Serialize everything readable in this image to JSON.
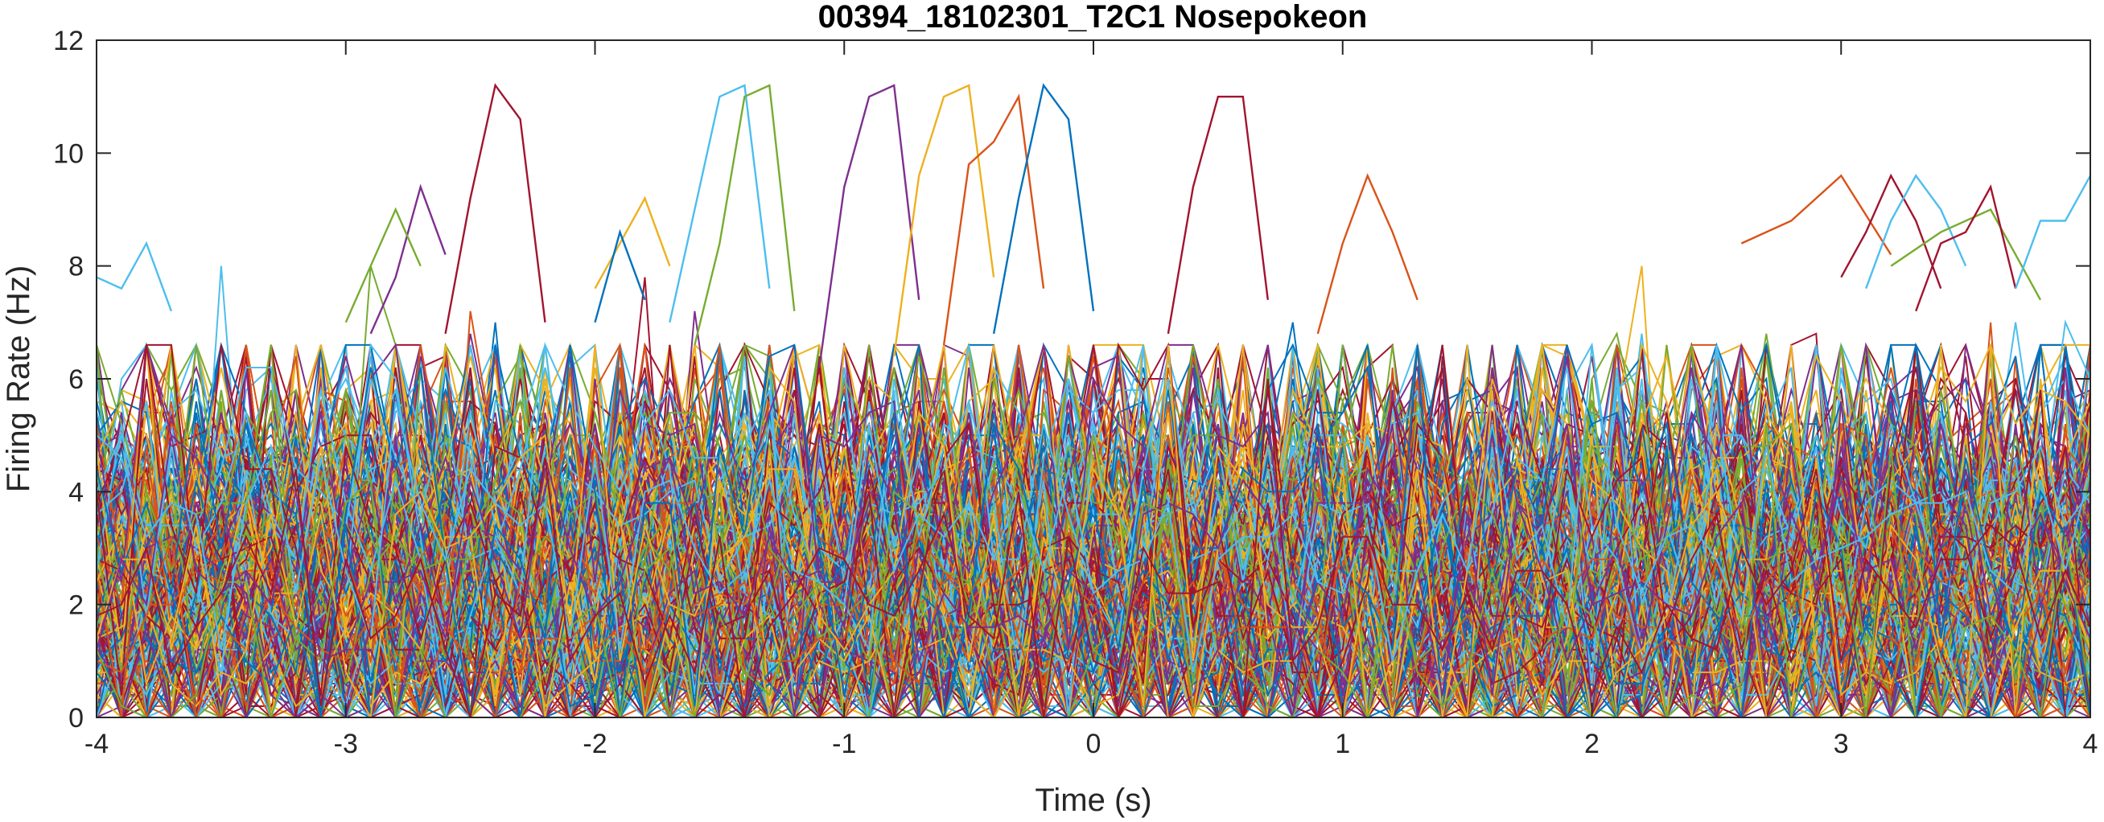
{
  "chart_data": {
    "type": "line",
    "title": "00394_18102301_T2C1 Nosepokeon",
    "xlabel": "Time (s)",
    "ylabel": "Firing Rate (Hz)",
    "xlim": [
      -4,
      4
    ],
    "ylim": [
      0,
      12
    ],
    "xticks": [
      -4,
      -3,
      -2,
      -1,
      0,
      1,
      2,
      3,
      4
    ],
    "yticks": [
      0,
      2,
      4,
      6,
      8,
      10,
      12
    ],
    "x_step": 0.1,
    "grid": false,
    "legend": "none",
    "series_colors": [
      "#0072BD",
      "#D95319",
      "#EDB120",
      "#7E2F8E",
      "#77AC30",
      "#4DBEEE",
      "#A2142F"
    ],
    "series_note_count": 280,
    "background_rate_hz": {
      "typical_min": 0,
      "typical_max": 6.5
    },
    "peaks": [
      {
        "color": "#A2142F",
        "x": [
          -2.6,
          -2.5,
          -2.4,
          -2.3,
          -2.2
        ],
        "y": [
          6.8,
          9.2,
          11.2,
          10.6,
          7.0
        ]
      },
      {
        "color": "#4DBEEE",
        "x": [
          -1.7,
          -1.6,
          -1.5,
          -1.4,
          -1.3
        ],
        "y": [
          7.0,
          9.0,
          11.0,
          11.2,
          7.6
        ]
      },
      {
        "color": "#77AC30",
        "x": [
          -1.6,
          -1.5,
          -1.4,
          -1.3,
          -1.2
        ],
        "y": [
          6.6,
          8.4,
          11.0,
          11.2,
          7.2
        ]
      },
      {
        "color": "#7E2F8E",
        "x": [
          -1.1,
          -1.0,
          -0.9,
          -0.8,
          -0.7
        ],
        "y": [
          6.2,
          9.4,
          11.0,
          11.2,
          7.4
        ]
      },
      {
        "color": "#EDB120",
        "x": [
          -0.8,
          -0.7,
          -0.6,
          -0.5,
          -0.4
        ],
        "y": [
          6.4,
          9.6,
          11.0,
          11.2,
          7.8
        ]
      },
      {
        "color": "#D95319",
        "x": [
          -0.6,
          -0.5,
          -0.4,
          -0.3,
          -0.2
        ],
        "y": [
          6.6,
          9.8,
          10.2,
          11.0,
          7.6
        ]
      },
      {
        "color": "#0072BD",
        "x": [
          -0.4,
          -0.3,
          -0.2,
          -0.1,
          0.0
        ],
        "y": [
          6.8,
          9.2,
          11.2,
          10.6,
          7.2
        ]
      },
      {
        "color": "#A2142F",
        "x": [
          0.3,
          0.4,
          0.5,
          0.6,
          0.7
        ],
        "y": [
          6.8,
          9.4,
          11.0,
          11.0,
          7.4
        ]
      },
      {
        "color": "#D95319",
        "x": [
          0.9,
          1.0,
          1.1,
          1.2,
          1.3
        ],
        "y": [
          6.8,
          8.4,
          9.6,
          8.6,
          7.4
        ]
      },
      {
        "color": "#D95319",
        "x": [
          2.6,
          2.8,
          3.0,
          3.2
        ],
        "y": [
          8.4,
          8.8,
          9.6,
          8.2
        ]
      },
      {
        "color": "#A2142F",
        "x": [
          3.0,
          3.1,
          3.2,
          3.3,
          3.4
        ],
        "y": [
          7.8,
          8.6,
          9.6,
          8.8,
          7.6
        ]
      },
      {
        "color": "#4DBEEE",
        "x": [
          3.1,
          3.2,
          3.3,
          3.4,
          3.5
        ],
        "y": [
          7.6,
          8.8,
          9.6,
          9.0,
          8.0
        ]
      },
      {
        "color": "#77AC30",
        "x": [
          3.2,
          3.4,
          3.6,
          3.7,
          3.8
        ],
        "y": [
          8.0,
          8.6,
          9.0,
          8.2,
          7.4
        ]
      },
      {
        "color": "#A2142F",
        "x": [
          3.3,
          3.4,
          3.5,
          3.6,
          3.7
        ],
        "y": [
          7.2,
          8.4,
          8.6,
          9.4,
          7.6
        ]
      },
      {
        "color": "#4DBEEE",
        "x": [
          3.7,
          3.8,
          3.9,
          4.0
        ],
        "y": [
          7.6,
          8.8,
          8.8,
          9.6
        ]
      },
      {
        "color": "#7E2F8E",
        "x": [
          -2.9,
          -2.8,
          -2.7,
          -2.6
        ],
        "y": [
          6.8,
          7.8,
          9.4,
          8.2
        ]
      },
      {
        "color": "#77AC30",
        "x": [
          -3.0,
          -2.9,
          -2.8,
          -2.7
        ],
        "y": [
          7.0,
          8.0,
          9.0,
          8.0
        ]
      },
      {
        "color": "#EDB120",
        "x": [
          -2.0,
          -1.9,
          -1.8,
          -1.7
        ],
        "y": [
          7.6,
          8.4,
          9.2,
          8.0
        ]
      },
      {
        "color": "#4DBEEE",
        "x": [
          -4.0,
          -3.9,
          -3.8,
          -3.7
        ],
        "y": [
          7.8,
          7.6,
          8.4,
          7.2
        ]
      },
      {
        "color": "#0072BD",
        "x": [
          -2.0,
          -1.9,
          -1.8
        ],
        "y": [
          7.0,
          8.6,
          7.4
        ]
      }
    ]
  }
}
